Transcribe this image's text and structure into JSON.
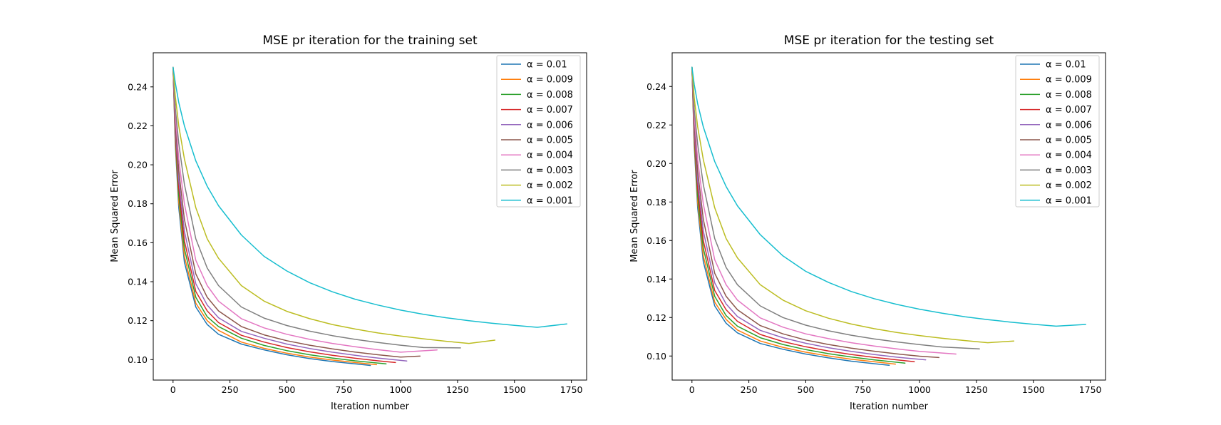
{
  "colors": {
    "background": "#ffffff",
    "axes": "#000000",
    "legend_border": "#cccccc"
  },
  "chart_data": [
    {
      "type": "line",
      "title": "MSE pr iteration for the training set",
      "xlabel": "Iteration number",
      "ylabel": "Mean Squared Error",
      "xlim": [
        -87,
        1817
      ],
      "ylim": [
        0.0895,
        0.2575
      ],
      "xticks": [
        0,
        250,
        500,
        750,
        1000,
        1250,
        1500,
        1750
      ],
      "xtick_labels": [
        "0",
        "250",
        "500",
        "750",
        "1000",
        "1250",
        "1500",
        "1750"
      ],
      "yticks": [
        0.1,
        0.12,
        0.14,
        0.16,
        0.18,
        0.2,
        0.22,
        0.24
      ],
      "ytick_labels": [
        "0.10",
        "0.12",
        "0.14",
        "0.16",
        "0.18",
        "0.20",
        "0.22",
        "0.24"
      ],
      "grid": false,
      "legend": "top-right",
      "series": [
        {
          "name": "α = 0.01",
          "color": "#1f77b4",
          "x": [
            0,
            10,
            25,
            50,
            100,
            150,
            200,
            300,
            400,
            500,
            600,
            700,
            800,
            867
          ],
          "y": [
            0.25,
            0.21,
            0.178,
            0.15,
            0.127,
            0.118,
            0.113,
            0.108,
            0.105,
            0.1025,
            0.1005,
            0.099,
            0.0978,
            0.097
          ]
        },
        {
          "name": "α = 0.009",
          "color": "#ff7f0e",
          "x": [
            0,
            10,
            25,
            50,
            100,
            150,
            200,
            300,
            400,
            500,
            600,
            700,
            800,
            894
          ],
          "y": [
            0.25,
            0.212,
            0.181,
            0.153,
            0.129,
            0.12,
            0.115,
            0.109,
            0.1058,
            0.1033,
            0.1013,
            0.0998,
            0.0985,
            0.0974
          ]
        },
        {
          "name": "α = 0.008",
          "color": "#2ca02c",
          "x": [
            0,
            10,
            25,
            50,
            100,
            150,
            200,
            300,
            400,
            500,
            600,
            700,
            800,
            936
          ],
          "y": [
            0.25,
            0.214,
            0.184,
            0.157,
            0.132,
            0.122,
            0.117,
            0.111,
            0.1073,
            0.1046,
            0.1025,
            0.1008,
            0.0994,
            0.0978
          ]
        },
        {
          "name": "α = 0.007",
          "color": "#d62728",
          "x": [
            0,
            10,
            25,
            50,
            100,
            150,
            200,
            300,
            400,
            500,
            600,
            700,
            800,
            900,
            977
          ],
          "y": [
            0.25,
            0.216,
            0.188,
            0.161,
            0.135,
            0.125,
            0.119,
            0.1125,
            0.109,
            0.1062,
            0.104,
            0.1022,
            0.1007,
            0.0994,
            0.0985
          ]
        },
        {
          "name": "α = 0.006",
          "color": "#9467bd",
          "x": [
            0,
            10,
            25,
            50,
            100,
            150,
            200,
            300,
            400,
            500,
            600,
            700,
            800,
            900,
            1027
          ],
          "y": [
            0.25,
            0.219,
            0.192,
            0.166,
            0.139,
            0.128,
            0.1215,
            0.1145,
            0.111,
            0.108,
            0.1057,
            0.1038,
            0.1022,
            0.1008,
            0.0993
          ]
        },
        {
          "name": "α = 0.005",
          "color": "#8c564b",
          "x": [
            0,
            10,
            25,
            50,
            100,
            150,
            200,
            300,
            400,
            500,
            600,
            700,
            800,
            900,
            1000,
            1085
          ],
          "y": [
            0.25,
            0.222,
            0.197,
            0.172,
            0.144,
            0.132,
            0.125,
            0.117,
            0.1127,
            0.1097,
            0.1074,
            0.1055,
            0.1039,
            0.1025,
            0.1013,
            0.1018
          ]
        },
        {
          "name": "α = 0.004",
          "color": "#e377c2",
          "x": [
            0,
            10,
            25,
            50,
            100,
            150,
            200,
            300,
            400,
            500,
            600,
            700,
            800,
            900,
            1000,
            1160
          ],
          "y": [
            0.25,
            0.225,
            0.203,
            0.18,
            0.151,
            0.138,
            0.13,
            0.121,
            0.1163,
            0.113,
            0.1104,
            0.1083,
            0.1066,
            0.1051,
            0.1038,
            0.105
          ]
        },
        {
          "name": "α = 0.003",
          "color": "#7f7f7f",
          "x": [
            0,
            10,
            25,
            50,
            100,
            150,
            200,
            300,
            400,
            500,
            600,
            700,
            800,
            900,
            1000,
            1100,
            1263
          ],
          "y": [
            0.25,
            0.229,
            0.211,
            0.19,
            0.162,
            0.147,
            0.138,
            0.127,
            0.1213,
            0.1175,
            0.1146,
            0.1123,
            0.1104,
            0.1088,
            0.1074,
            0.1062,
            0.106
          ]
        },
        {
          "name": "α = 0.002",
          "color": "#bcbd22",
          "x": [
            0,
            10,
            25,
            50,
            100,
            150,
            200,
            300,
            400,
            500,
            600,
            700,
            800,
            900,
            1000,
            1100,
            1200,
            1300,
            1414
          ],
          "y": [
            0.25,
            0.235,
            0.22,
            0.203,
            0.178,
            0.162,
            0.152,
            0.138,
            0.13,
            0.1248,
            0.121,
            0.118,
            0.1157,
            0.1137,
            0.1121,
            0.1107,
            0.1094,
            0.1083,
            0.11
          ]
        },
        {
          "name": "α = 0.001",
          "color": "#17becf",
          "x": [
            0,
            10,
            25,
            50,
            100,
            150,
            200,
            300,
            400,
            500,
            600,
            700,
            800,
            900,
            1000,
            1100,
            1200,
            1300,
            1400,
            1500,
            1600,
            1730
          ],
          "y": [
            0.25,
            0.242,
            0.232,
            0.22,
            0.202,
            0.189,
            0.179,
            0.164,
            0.153,
            0.1455,
            0.1395,
            0.1348,
            0.131,
            0.128,
            0.1254,
            0.1233,
            0.1215,
            0.12,
            0.1187,
            0.1176,
            0.1166,
            0.1183
          ]
        }
      ]
    },
    {
      "type": "line",
      "title": "MSE pr iteration for the testing set",
      "xlabel": "Iteration number",
      "ylabel": "Mean Squared Error",
      "xlim": [
        -87,
        1817
      ],
      "ylim": [
        0.0875,
        0.2575
      ],
      "xticks": [
        0,
        250,
        500,
        750,
        1000,
        1250,
        1500,
        1750
      ],
      "xtick_labels": [
        "0",
        "250",
        "500",
        "750",
        "1000",
        "1250",
        "1500",
        "1750"
      ],
      "yticks": [
        0.1,
        0.12,
        0.14,
        0.16,
        0.18,
        0.2,
        0.22,
        0.24
      ],
      "ytick_labels": [
        "0.10",
        "0.12",
        "0.14",
        "0.16",
        "0.18",
        "0.20",
        "0.22",
        "0.24"
      ],
      "grid": false,
      "legend": "top-right",
      "series": [
        {
          "name": "α = 0.01",
          "color": "#1f77b4",
          "x": [
            0,
            10,
            25,
            50,
            100,
            150,
            200,
            300,
            400,
            500,
            600,
            700,
            800,
            867
          ],
          "y": [
            0.25,
            0.209,
            0.177,
            0.149,
            0.126,
            0.117,
            0.112,
            0.1065,
            0.1035,
            0.101,
            0.099,
            0.0973,
            0.096,
            0.0952
          ]
        },
        {
          "name": "α = 0.009",
          "color": "#ff7f0e",
          "x": [
            0,
            10,
            25,
            50,
            100,
            150,
            200,
            300,
            400,
            500,
            600,
            700,
            800,
            894
          ],
          "y": [
            0.25,
            0.211,
            0.18,
            0.152,
            0.128,
            0.119,
            0.1135,
            0.1078,
            0.1045,
            0.102,
            0.1,
            0.0983,
            0.097,
            0.0958
          ]
        },
        {
          "name": "α = 0.008",
          "color": "#2ca02c",
          "x": [
            0,
            10,
            25,
            50,
            100,
            150,
            200,
            300,
            400,
            500,
            600,
            700,
            800,
            936
          ],
          "y": [
            0.25,
            0.213,
            0.183,
            0.156,
            0.131,
            0.121,
            0.1155,
            0.1095,
            0.106,
            0.1033,
            0.1012,
            0.0995,
            0.098,
            0.0963
          ]
        },
        {
          "name": "α = 0.007",
          "color": "#d62728",
          "x": [
            0,
            10,
            25,
            50,
            100,
            150,
            200,
            300,
            400,
            500,
            600,
            700,
            800,
            900,
            977
          ],
          "y": [
            0.25,
            0.215,
            0.187,
            0.16,
            0.134,
            0.124,
            0.118,
            0.1112,
            0.1075,
            0.1048,
            0.1026,
            0.1008,
            0.0993,
            0.098,
            0.097
          ]
        },
        {
          "name": "α = 0.006",
          "color": "#9467bd",
          "x": [
            0,
            10,
            25,
            50,
            100,
            150,
            200,
            300,
            400,
            500,
            600,
            700,
            800,
            900,
            1027
          ],
          "y": [
            0.25,
            0.218,
            0.191,
            0.165,
            0.138,
            0.127,
            0.1205,
            0.1133,
            0.1095,
            0.1066,
            0.1043,
            0.1024,
            0.1008,
            0.0994,
            0.098
          ]
        },
        {
          "name": "α = 0.005",
          "color": "#8c564b",
          "x": [
            0,
            10,
            25,
            50,
            100,
            150,
            200,
            300,
            400,
            500,
            600,
            700,
            800,
            900,
            1000,
            1085
          ],
          "y": [
            0.25,
            0.221,
            0.196,
            0.171,
            0.143,
            0.131,
            0.124,
            0.1158,
            0.1115,
            0.1083,
            0.106,
            0.1041,
            0.1025,
            0.1011,
            0.0999,
            0.0992
          ]
        },
        {
          "name": "α = 0.004",
          "color": "#e377c2",
          "x": [
            0,
            10,
            25,
            50,
            100,
            150,
            200,
            300,
            400,
            500,
            600,
            700,
            800,
            900,
            1000,
            1160
          ],
          "y": [
            0.25,
            0.224,
            0.202,
            0.179,
            0.15,
            0.137,
            0.129,
            0.1198,
            0.115,
            0.1115,
            0.109,
            0.1069,
            0.1052,
            0.1037,
            0.1024,
            0.101
          ]
        },
        {
          "name": "α = 0.003",
          "color": "#7f7f7f",
          "x": [
            0,
            10,
            25,
            50,
            100,
            150,
            200,
            300,
            400,
            500,
            600,
            700,
            800,
            900,
            1000,
            1100,
            1263
          ],
          "y": [
            0.25,
            0.228,
            0.21,
            0.189,
            0.161,
            0.146,
            0.137,
            0.126,
            0.12,
            0.116,
            0.1131,
            0.1108,
            0.1089,
            0.1073,
            0.1059,
            0.1047,
            0.1037
          ]
        },
        {
          "name": "α = 0.002",
          "color": "#bcbd22",
          "x": [
            0,
            10,
            25,
            50,
            100,
            150,
            200,
            300,
            400,
            500,
            600,
            700,
            800,
            900,
            1000,
            1100,
            1200,
            1300,
            1414
          ],
          "y": [
            0.25,
            0.234,
            0.219,
            0.202,
            0.177,
            0.161,
            0.151,
            0.137,
            0.129,
            0.1235,
            0.1196,
            0.1166,
            0.1142,
            0.1122,
            0.1106,
            0.1092,
            0.108,
            0.1069,
            0.1078
          ]
        },
        {
          "name": "α = 0.001",
          "color": "#17becf",
          "x": [
            0,
            10,
            25,
            50,
            100,
            150,
            200,
            300,
            400,
            500,
            600,
            700,
            800,
            900,
            1000,
            1100,
            1200,
            1300,
            1400,
            1500,
            1600,
            1730
          ],
          "y": [
            0.25,
            0.241,
            0.231,
            0.219,
            0.201,
            0.188,
            0.178,
            0.163,
            0.152,
            0.144,
            0.1382,
            0.1335,
            0.1298,
            0.1268,
            0.1243,
            0.1222,
            0.1204,
            0.1189,
            0.1176,
            0.1165,
            0.1155,
            0.1164
          ]
        }
      ]
    }
  ]
}
